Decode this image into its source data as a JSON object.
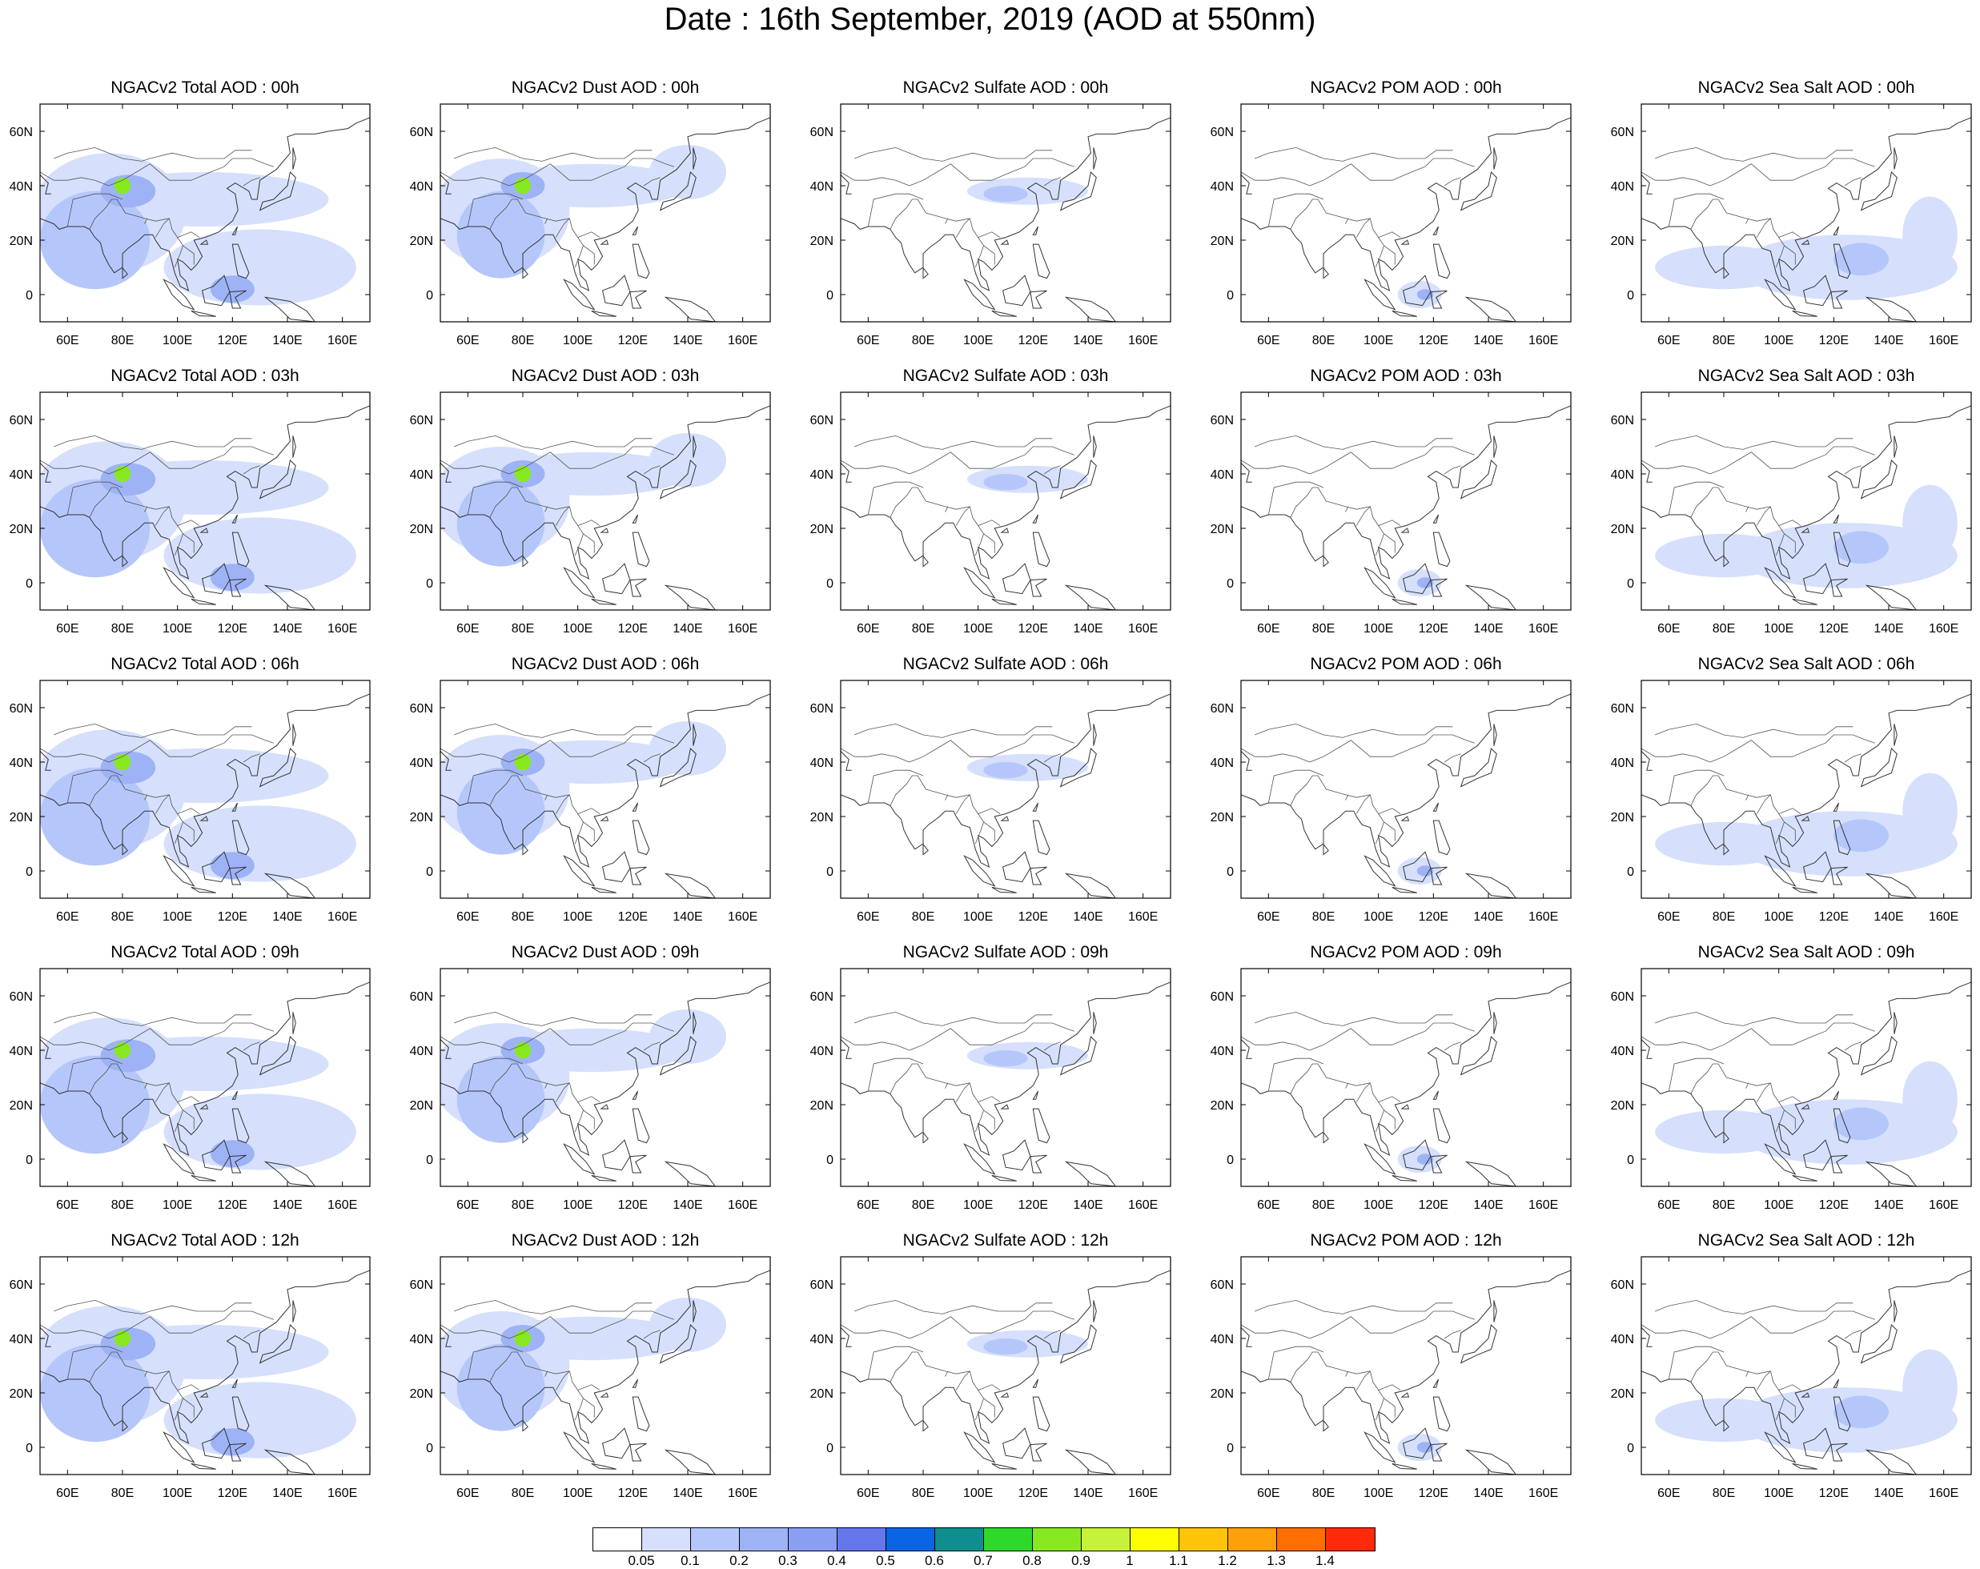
{
  "title": "Date : 16th September, 2019 (AOD at 550nm)",
  "map_extent": {
    "lon": [
      50,
      170
    ],
    "lat": [
      -10,
      70
    ]
  },
  "lon_ticks": [
    "60E",
    "80E",
    "100E",
    "120E",
    "140E",
    "160E"
  ],
  "lat_ticks": [
    "60N",
    "40N",
    "20N",
    "0"
  ],
  "columns": [
    "total",
    "dust",
    "sulfate",
    "pom",
    "seasalt"
  ],
  "panels": [
    [
      "NGACv2 Total AOD : 00h",
      "NGACv2 Dust AOD : 00h",
      "NGACv2 Sulfate AOD : 00h",
      "NGACv2 POM AOD : 00h",
      "NGACv2 Sea Salt AOD : 00h"
    ],
    [
      "NGACv2 Total AOD : 03h",
      "NGACv2 Dust AOD : 03h",
      "NGACv2 Sulfate AOD : 03h",
      "NGACv2 POM AOD : 03h",
      "NGACv2 Sea Salt AOD : 03h"
    ],
    [
      "NGACv2 Total AOD : 06h",
      "NGACv2 Dust AOD : 06h",
      "NGACv2 Sulfate AOD : 06h",
      "NGACv2 POM AOD : 06h",
      "NGACv2 Sea Salt AOD : 06h"
    ],
    [
      "NGACv2 Total AOD : 09h",
      "NGACv2 Dust AOD : 09h",
      "NGACv2 Sulfate AOD : 09h",
      "NGACv2 POM AOD : 09h",
      "NGACv2 Sea Salt  AOD : 09h"
    ],
    [
      "NGACv2 Total AOD  : 12h",
      "NGACv2 Dust AOD : 12h",
      "NGACv2 Sulfate AOD : 12h",
      "NGACv2 POM  AOD : 12h",
      "NGACv2 Sea Salt  AOD : 12h"
    ]
  ],
  "colorbar": {
    "labels": [
      "0.05",
      "0.1",
      "0.2",
      "0.3",
      "0.4",
      "0.5",
      "0.6",
      "0.7",
      "0.8",
      "0.9",
      "1",
      "1.1",
      "1.2",
      "1.3",
      "1.4"
    ],
    "colors": [
      "#ffffff",
      "#d6e0fc",
      "#b5c7fa",
      "#9db3f6",
      "#8a9ef3",
      "#6677ee",
      "#0a64e6",
      "#0e8e8e",
      "#2fd92a",
      "#88e820",
      "#c7f23a",
      "#ffff00",
      "#ffc40a",
      "#ff9f0a",
      "#ff6e00",
      "#ff2a0a"
    ]
  }
}
